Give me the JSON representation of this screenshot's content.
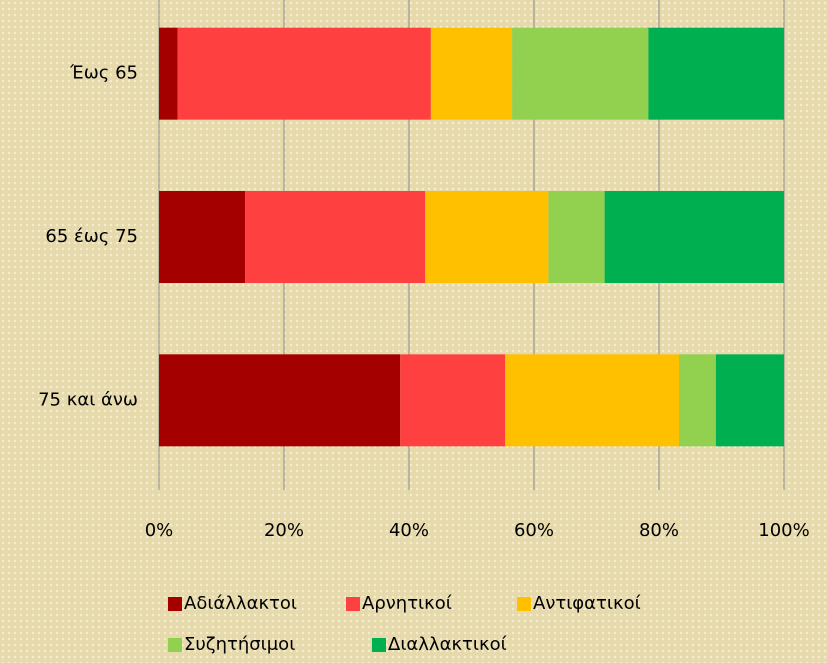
{
  "chart_data": {
    "type": "stacked-barh",
    "categories": [
      "Έως 65",
      "65 έως 75",
      "75 και άνω"
    ],
    "series": [
      {
        "name": "Αδιάλλακτοι",
        "color": "#a50000",
        "values": [
          3,
          13.8,
          38.6
        ]
      },
      {
        "name": "Αρνητικοί",
        "color": "#ff4040",
        "values": [
          40.5,
          28.8,
          16.8
        ]
      },
      {
        "name": "Αντιφατικοί",
        "color": "#ffc000",
        "values": [
          13,
          19.7,
          27.8
        ]
      },
      {
        "name": "Συζητήσιμοι",
        "color": "#92d050",
        "values": [
          21.8,
          9,
          5.9
        ]
      },
      {
        "name": "Διαλλακτικοί",
        "color": "#00b050",
        "values": [
          21.7,
          28.7,
          10.9
        ]
      }
    ],
    "xlim": [
      0,
      100
    ],
    "xticks": [
      {
        "value": 0,
        "label": "0%"
      },
      {
        "value": 20,
        "label": "20%"
      },
      {
        "value": 40,
        "label": "40%"
      },
      {
        "value": 60,
        "label": "60%"
      },
      {
        "value": 80,
        "label": "80%"
      },
      {
        "value": 100,
        "label": "100%"
      }
    ],
    "grid": true,
    "legend": "bottom"
  }
}
